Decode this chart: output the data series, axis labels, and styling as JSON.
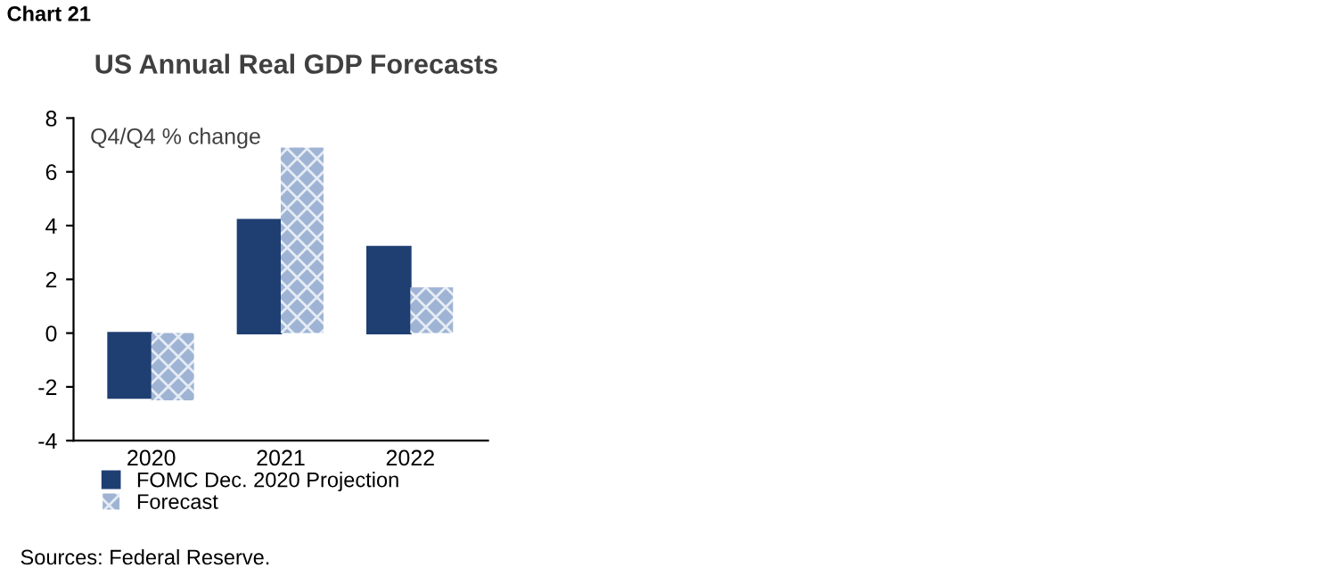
{
  "chart_data": {
    "type": "bar",
    "title": "US Annual Real GDP Forecasts",
    "subtitle": "Chart 21",
    "ylabel": "Q4/Q4 % change",
    "categories": [
      "2020",
      "2021",
      "2022"
    ],
    "series": [
      {
        "name": "FOMC Dec. 2020 Projection",
        "color": "#1f3f73",
        "values": [
          -2.4,
          4.2,
          3.2
        ]
      },
      {
        "name": "Forecast",
        "color": "#9fb4d4",
        "values": [
          -2.5,
          6.9,
          1.7
        ]
      }
    ],
    "ylim": [
      -4,
      8
    ],
    "yticks": [
      -4,
      -2,
      0,
      2,
      4,
      6,
      8
    ],
    "grid": false,
    "legend": "bottom left",
    "annotations": [
      "Sources: Federal Reserve."
    ]
  }
}
